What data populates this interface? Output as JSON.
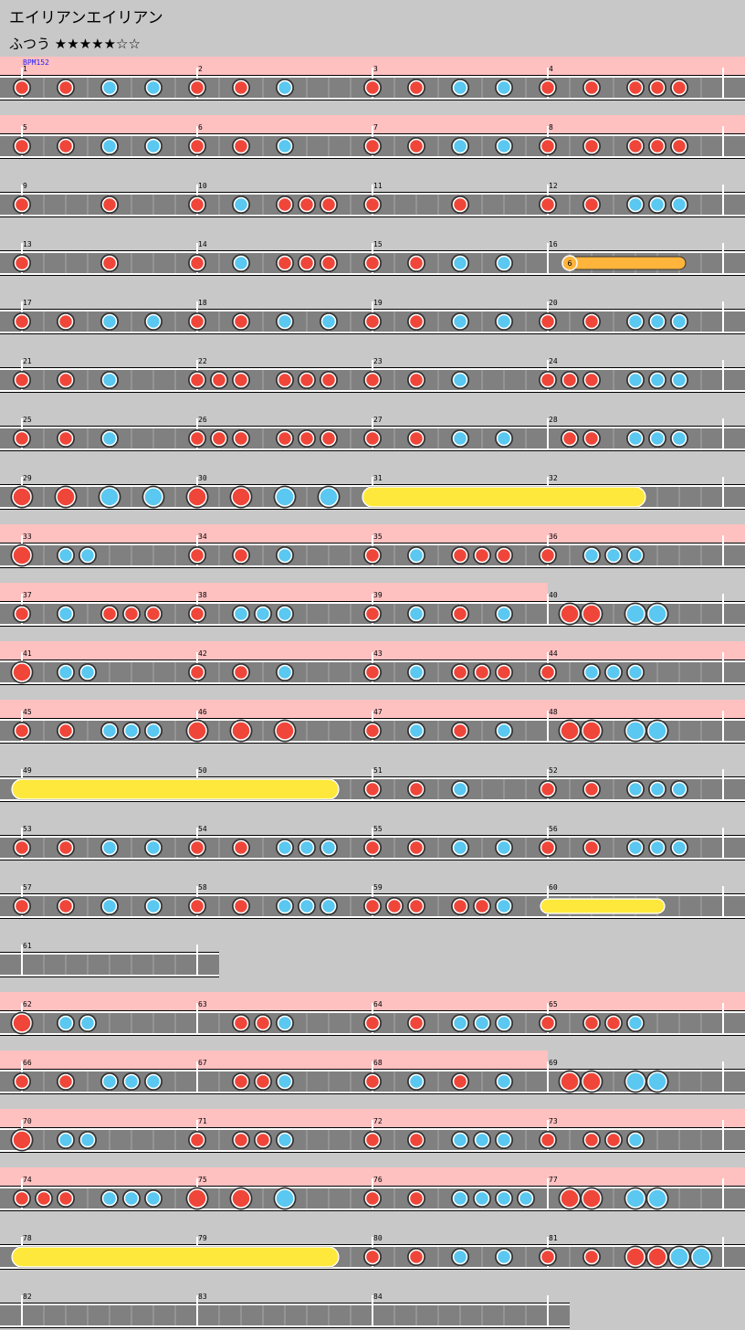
{
  "header": {
    "title": "エイリアンエイリアン",
    "difficulty": "ふつう",
    "stars": "★★★★★☆☆"
  },
  "bpm_label": "BPM152",
  "rows": [
    {
      "measures": [
        {
          "number": "1",
          "notes": "10102020",
          "gogo": true
        },
        {
          "number": "2",
          "notes": "10102000",
          "gogo": true
        },
        {
          "number": "3",
          "notes": "10102020",
          "gogo": true
        },
        {
          "number": "4",
          "notes": "10101110",
          "gogo": true
        }
      ]
    },
    {
      "measures": [
        {
          "number": "5",
          "notes": "10102020",
          "gogo": true
        },
        {
          "number": "6",
          "notes": "10102000",
          "gogo": true
        },
        {
          "number": "7",
          "notes": "10102020",
          "gogo": true
        },
        {
          "number": "8",
          "notes": "10101110",
          "gogo": true
        }
      ]
    },
    {
      "measures": [
        {
          "number": "9",
          "notes": "10001000",
          "gogo": false
        },
        {
          "number": "10",
          "notes": "10201110",
          "gogo": false
        },
        {
          "number": "11",
          "notes": "10001000",
          "gogo": false
        },
        {
          "number": "12",
          "notes": "10102220",
          "gogo": false
        }
      ]
    },
    {
      "measures": [
        {
          "number": "13",
          "notes": "10001000",
          "gogo": false
        },
        {
          "number": "14",
          "notes": "10201110",
          "gogo": false
        },
        {
          "number": "15",
          "notes": "10102020",
          "gogo": false
        },
        {
          "number": "16",
          "notes": "07000080",
          "gogo": false,
          "balloon": 6
        }
      ]
    },
    {
      "measures": [
        {
          "number": "17",
          "notes": "10102020",
          "gogo": false
        },
        {
          "number": "18",
          "notes": "10102020",
          "gogo": false
        },
        {
          "number": "19",
          "notes": "10102020",
          "gogo": false
        },
        {
          "number": "20",
          "notes": "10102220",
          "gogo": false
        }
      ]
    },
    {
      "measures": [
        {
          "number": "21",
          "notes": "10102000",
          "gogo": false
        },
        {
          "number": "22",
          "notes": "11101110",
          "gogo": false
        },
        {
          "number": "23",
          "notes": "10102000",
          "gogo": false
        },
        {
          "number": "24",
          "notes": "11102220",
          "gogo": false
        }
      ]
    },
    {
      "measures": [
        {
          "number": "25",
          "notes": "10102000",
          "gogo": false
        },
        {
          "number": "26",
          "notes": "11101110",
          "gogo": false
        },
        {
          "number": "27",
          "notes": "10102020",
          "gogo": false
        },
        {
          "number": "28",
          "notes": "01102220",
          "gogo": false
        }
      ]
    },
    {
      "measures": [
        {
          "number": "29",
          "notes": "30304040",
          "gogo": false
        },
        {
          "number": "30",
          "notes": "30304040",
          "gogo": false
        },
        {
          "number": "31",
          "notes": "60000000",
          "gogo": false
        },
        {
          "number": "32",
          "notes": "00008000",
          "gogo": false
        }
      ]
    },
    {
      "measures": [
        {
          "number": "33",
          "notes": "30220000",
          "gogo": true
        },
        {
          "number": "34",
          "notes": "10102000",
          "gogo": true
        },
        {
          "number": "35",
          "notes": "10201110",
          "gogo": true
        },
        {
          "number": "36",
          "notes": "10222000",
          "gogo": true
        }
      ]
    },
    {
      "measures": [
        {
          "number": "37",
          "notes": "10201110",
          "gogo": true
        },
        {
          "number": "38",
          "notes": "10222000",
          "gogo": true
        },
        {
          "number": "39",
          "notes": "10201020",
          "gogo": true
        },
        {
          "number": "40",
          "notes": "03304400",
          "gogo": false
        }
      ]
    },
    {
      "measures": [
        {
          "number": "41",
          "notes": "30220000",
          "gogo": true
        },
        {
          "number": "42",
          "notes": "10102000",
          "gogo": true
        },
        {
          "number": "43",
          "notes": "10201110",
          "gogo": true
        },
        {
          "number": "44",
          "notes": "10222000",
          "gogo": true
        }
      ]
    },
    {
      "measures": [
        {
          "number": "45",
          "notes": "10102220",
          "gogo": true
        },
        {
          "number": "46",
          "notes": "30303000",
          "gogo": true
        },
        {
          "number": "47",
          "notes": "10201020",
          "gogo": true
        },
        {
          "number": "48",
          "notes": "03304400",
          "gogo": true
        }
      ]
    },
    {
      "measures": [
        {
          "number": "49",
          "notes": "60000000",
          "gogo": false
        },
        {
          "number": "50",
          "notes": "00000080",
          "gogo": false
        },
        {
          "number": "51",
          "notes": "10102000",
          "gogo": false
        },
        {
          "number": "52",
          "notes": "10102220",
          "gogo": false
        }
      ]
    },
    {
      "measures": [
        {
          "number": "53",
          "notes": "10102020",
          "gogo": false
        },
        {
          "number": "54",
          "notes": "10102220",
          "gogo": false
        },
        {
          "number": "55",
          "notes": "10102020",
          "gogo": false
        },
        {
          "number": "56",
          "notes": "10102220",
          "gogo": false
        }
      ]
    },
    {
      "measures": [
        {
          "number": "57",
          "notes": "10102020",
          "gogo": false
        },
        {
          "number": "58",
          "notes": "10102220",
          "gogo": false
        },
        {
          "number": "59",
          "notes": "11101120",
          "gogo": false
        },
        {
          "number": "60",
          "notes": "50000800",
          "gogo": false
        }
      ]
    },
    {
      "measures": [
        {
          "number": "61",
          "notes": "00000000",
          "gogo": false
        }
      ]
    },
    {
      "measures": [
        {
          "number": "62",
          "notes": "30220000",
          "gogo": true
        },
        {
          "number": "63",
          "notes": "00112000",
          "gogo": true
        },
        {
          "number": "64",
          "notes": "10102220",
          "gogo": true
        },
        {
          "number": "65",
          "notes": "10112000",
          "gogo": true
        }
      ]
    },
    {
      "measures": [
        {
          "number": "66",
          "notes": "10102220",
          "gogo": true
        },
        {
          "number": "67",
          "notes": "00112000",
          "gogo": true
        },
        {
          "number": "68",
          "notes": "10201020",
          "gogo": true
        },
        {
          "number": "69",
          "notes": "03304400",
          "gogo": false
        }
      ]
    },
    {
      "measures": [
        {
          "number": "70",
          "notes": "30220000",
          "gogo": true
        },
        {
          "number": "71",
          "notes": "10112000",
          "gogo": true
        },
        {
          "number": "72",
          "notes": "10102220",
          "gogo": true
        },
        {
          "number": "73",
          "notes": "10112000",
          "gogo": true
        }
      ]
    },
    {
      "measures": [
        {
          "number": "74",
          "notes": "11102220",
          "gogo": true
        },
        {
          "number": "75",
          "notes": "30304000",
          "gogo": true
        },
        {
          "number": "76",
          "notes": "10102222",
          "gogo": true
        },
        {
          "number": "77",
          "notes": "03304400",
          "gogo": true
        }
      ]
    },
    {
      "measures": [
        {
          "number": "78",
          "notes": "60000000",
          "gogo": false
        },
        {
          "number": "79",
          "notes": "00000080",
          "gogo": false
        },
        {
          "number": "80",
          "notes": "10102020",
          "gogo": false
        },
        {
          "number": "81",
          "notes": "10103344",
          "gogo": false
        }
      ]
    },
    {
      "measures": [
        {
          "number": "82",
          "notes": "00000000",
          "gogo": false
        },
        {
          "number": "83",
          "notes": "00000000",
          "gogo": false
        },
        {
          "number": "84",
          "notes": "00000000",
          "gogo": false
        }
      ]
    }
  ]
}
